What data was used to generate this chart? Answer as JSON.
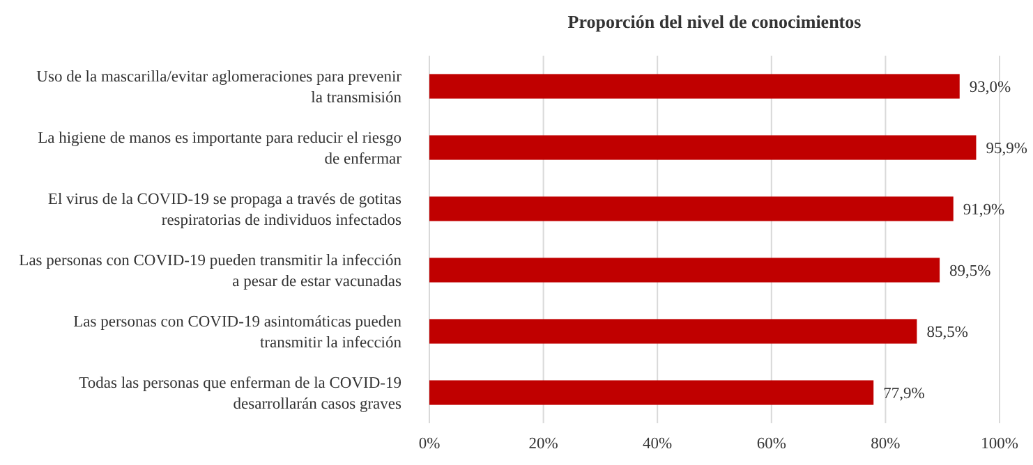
{
  "chart_data": {
    "type": "bar",
    "orientation": "horizontal",
    "title": "Proporción del nivel de conocimientos",
    "categories": [
      "Uso de la mascarilla/evitar aglomeraciones para prevenir la transmisión",
      "La higiene de manos es importante para reducir el riesgo de enfermar",
      "El virus de la COVID-19 se propaga a través de gotitas respiratorias de individuos infectados",
      "Las personas con COVID-19 pueden transmitir la infección a pesar de estar vacunadas",
      "Las personas con COVID-19 asintomáticas pueden transmitir la infección",
      "Todas las personas que enferman de la COVID-19 desarrollarán casos graves"
    ],
    "values": [
      93.0,
      95.9,
      91.9,
      89.5,
      85.5,
      77.9
    ],
    "value_labels": [
      "93,0%",
      "95,9%",
      "91,9%",
      "89,5%",
      "85,5%",
      "77,9%"
    ],
    "color": "#c00000",
    "xlim": [
      0,
      100
    ],
    "xticks": [
      {
        "value": 0,
        "label": "0%"
      },
      {
        "value": 20,
        "label": "20%"
      },
      {
        "value": 40,
        "label": "40%"
      },
      {
        "value": 60,
        "label": "60%"
      },
      {
        "value": 80,
        "label": "80%"
      },
      {
        "value": 100,
        "label": "100%"
      }
    ],
    "grid": "x"
  }
}
